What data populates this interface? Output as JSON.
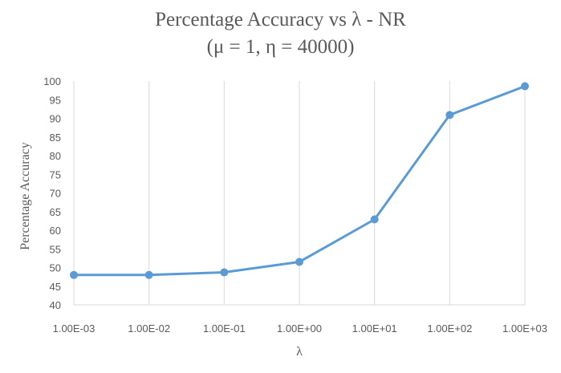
{
  "chart_data": {
    "type": "line",
    "title_line1": "Percentage Accuracy vs λ - NR",
    "title_line2": "(μ = 1, η = 40000)",
    "xlabel": "λ",
    "ylabel": "Percentage Accuracy",
    "x_scale": "log",
    "x_ticks": [
      "1.00E-03",
      "1.00E-02",
      "1.00E-01",
      "1.00E+00",
      "1.00E+01",
      "1.00E+02",
      "1.00E+03"
    ],
    "ylim": [
      40,
      100
    ],
    "y_ticks": [
      40,
      45,
      50,
      55,
      60,
      65,
      70,
      75,
      80,
      85,
      90,
      95,
      100
    ],
    "grid": "vertical",
    "series": [
      {
        "x": [
          0.001,
          0.01,
          0.1,
          1,
          10,
          100,
          1000
        ],
        "values": [
          48,
          48,
          48.7,
          51.5,
          62.9,
          90.9,
          98.6
        ]
      }
    ],
    "colors": {
      "line": "#5b9bd5",
      "grid": "#d9d9d9",
      "text": "#595959"
    }
  }
}
